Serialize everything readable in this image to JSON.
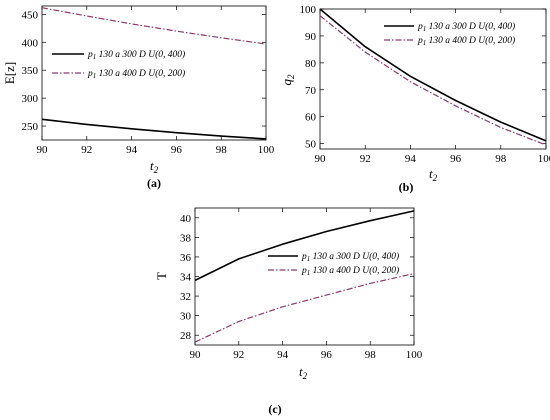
{
  "figure": {
    "panels": [
      "(a)",
      "(b)",
      "(c)"
    ]
  },
  "legend_labels": {
    "s1_p": "p",
    "s1_sub": "1",
    "s1_rest": " 130 a 300 D U(0,  400)",
    "s2_p": "p",
    "s2_sub": "1",
    "s2_rest": " 130 a 400 D U(0,  200)"
  },
  "colors": {
    "series1": "#000000",
    "series2": "#8b3a6e"
  },
  "chart_data": [
    {
      "type": "line",
      "panel": "(a)",
      "xlabel": "t2",
      "ylabel": "E[z]",
      "xlim": [
        90,
        100
      ],
      "ylim": [
        225,
        465
      ],
      "xticks": [
        90,
        92,
        94,
        96,
        98,
        100
      ],
      "yticks": [
        250,
        300,
        350,
        400,
        450
      ],
      "grid": false,
      "legend_position": "upper-left",
      "x": [
        90,
        92,
        94,
        96,
        98,
        100
      ],
      "series": [
        {
          "name": "p1 130 a 300 D U(0,  400)",
          "style": "solid",
          "values": [
            262,
            253,
            245,
            238,
            232,
            227
          ]
        },
        {
          "name": "p1 130 a 400 D U(0,  200)",
          "style": "dash-dot",
          "values": [
            462,
            447,
            433,
            420,
            408,
            397
          ]
        }
      ]
    },
    {
      "type": "line",
      "panel": "(b)",
      "xlabel": "t2",
      "ylabel": "q2",
      "xlim": [
        90,
        100
      ],
      "ylim": [
        48,
        100
      ],
      "xticks": [
        90,
        92,
        94,
        96,
        98,
        100
      ],
      "yticks": [
        50,
        60,
        70,
        80,
        90,
        100
      ],
      "grid": false,
      "legend_position": "top-right",
      "x": [
        90,
        92,
        94,
        96,
        98,
        100
      ],
      "series": [
        {
          "name": "p1 130 a 300 D U(0,  400)",
          "style": "solid",
          "values": [
            100,
            86,
            75,
            66,
            58,
            51
          ]
        },
        {
          "name": "p1 130 a 400 D U(0,  200)",
          "style": "dash-dot",
          "values": [
            97.5,
            84,
            73,
            64,
            56,
            49.5
          ]
        }
      ]
    },
    {
      "type": "line",
      "panel": "(c)",
      "xlabel": "t2",
      "ylabel": "T",
      "xlim": [
        90,
        100
      ],
      "ylim": [
        27,
        41
      ],
      "xticks": [
        90,
        92,
        94,
        96,
        98,
        100
      ],
      "yticks": [
        28,
        30,
        32,
        34,
        36,
        38,
        40
      ],
      "grid": false,
      "legend_position": "center-right",
      "x": [
        90,
        92,
        94,
        96,
        98,
        100
      ],
      "series": [
        {
          "name": "p1 130 a 300 D U(0,  400)",
          "style": "solid",
          "values": [
            33.6,
            35.8,
            37.3,
            38.6,
            39.7,
            40.7
          ]
        },
        {
          "name": "p1 130 a 400 D U(0,  200)",
          "style": "dash-dot",
          "values": [
            27.3,
            29.4,
            30.9,
            32.1,
            33.3,
            34.3
          ]
        }
      ]
    }
  ]
}
